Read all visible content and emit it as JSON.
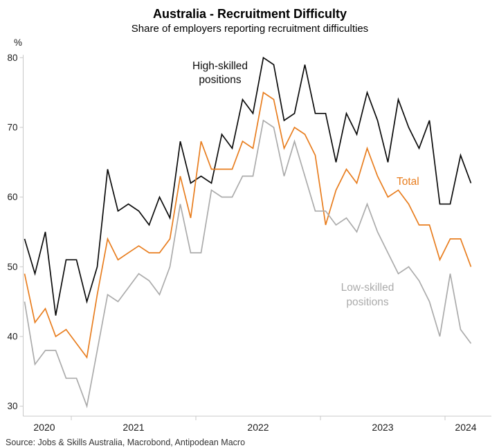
{
  "header": {
    "title": "Australia - Recruitment Difficulty",
    "subtitle": "Share of employers reporting recruitment difficulties"
  },
  "source_line": "Source: Jobs & Skills Australia, Macrobond, Antipodean Macro",
  "labels": {
    "high_skilled_line1": "High-skilled",
    "high_skilled_line2": "positions",
    "total": "Total",
    "low_skilled_line1": "Low-skilled",
    "low_skilled_line2": "positions",
    "y_unit": "%"
  },
  "colors": {
    "high_skilled": "#0a0a0a",
    "total": "#e87d1e",
    "low_skilled": "#ababab",
    "axis": "#c8c8c8",
    "text": "#1a1a1a"
  },
  "chart_data": {
    "type": "line",
    "title": "Australia - Recruitment Difficulty",
    "subtitle": "Share of employers reporting recruitment difficulties",
    "ylabel": "%",
    "ylim": [
      30,
      80
    ],
    "y_ticks": [
      80,
      70,
      60,
      50,
      40,
      30
    ],
    "x_year_labels": [
      "2020",
      "2021",
      "2022",
      "2023",
      "2024"
    ],
    "frequency": "monthly",
    "x": [
      "2020-08",
      "2020-09",
      "2020-10",
      "2020-11",
      "2020-12",
      "2021-01",
      "2021-02",
      "2021-03",
      "2021-04",
      "2021-05",
      "2021-06",
      "2021-07",
      "2021-08",
      "2021-09",
      "2021-10",
      "2021-11",
      "2021-12",
      "2022-01",
      "2022-02",
      "2022-03",
      "2022-04",
      "2022-05",
      "2022-06",
      "2022-07",
      "2022-08",
      "2022-09",
      "2022-10",
      "2022-11",
      "2022-12",
      "2023-01",
      "2023-02",
      "2023-03",
      "2023-04",
      "2023-05",
      "2023-06",
      "2023-07",
      "2023-08",
      "2023-09",
      "2023-10",
      "2023-11",
      "2023-12",
      "2024-01",
      "2024-02",
      "2024-03"
    ],
    "series": [
      {
        "id": "high_skilled",
        "name": "High-skilled positions",
        "color": "#0a0a0a",
        "values": [
          54,
          49,
          55,
          43,
          51,
          51,
          45,
          50,
          64,
          58,
          59,
          58,
          56,
          60,
          57,
          68,
          62,
          63,
          62,
          69,
          67,
          74,
          72,
          80,
          79,
          71,
          72,
          79,
          72,
          72,
          65,
          72,
          69,
          75,
          71,
          65,
          74,
          70,
          67,
          71,
          59,
          59,
          66,
          62
        ]
      },
      {
        "id": "total",
        "name": "Total",
        "color": "#e87d1e",
        "values": [
          49,
          42,
          44,
          40,
          41,
          39,
          37,
          46,
          54,
          51,
          52,
          53,
          52,
          52,
          54,
          63,
          57,
          68,
          64,
          64,
          64,
          68,
          67,
          75,
          74,
          67,
          70,
          69,
          66,
          56,
          61,
          64,
          62,
          67,
          63,
          60,
          61,
          59,
          56,
          56,
          51,
          54,
          54,
          50
        ]
      },
      {
        "id": "low_skilled",
        "name": "Low-skilled positions",
        "color": "#ababab",
        "values": [
          45,
          36,
          38,
          38,
          34,
          34,
          30,
          38,
          46,
          45,
          47,
          49,
          48,
          46,
          50,
          59,
          52,
          52,
          61,
          60,
          60,
          63,
          63,
          71,
          70,
          63,
          68,
          63,
          58,
          58,
          56,
          57,
          55,
          59,
          55,
          52,
          49,
          50,
          48,
          45,
          40,
          49,
          41,
          39
        ]
      }
    ],
    "legend_position": "inline-annotations",
    "grid": false
  }
}
